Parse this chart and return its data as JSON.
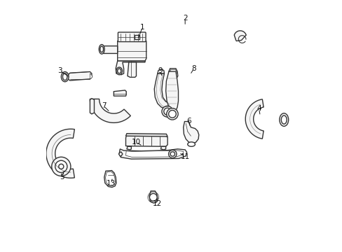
{
  "background_color": "#ffffff",
  "line_color": "#333333",
  "line_width": 1.0,
  "label_color": "#111111",
  "label_fontsize": 7.5,
  "fig_width": 4.89,
  "fig_height": 3.6,
  "dpi": 100,
  "label_positions": {
    "1": [
      0.385,
      0.895,
      0.365,
      0.845
    ],
    "2": [
      0.555,
      0.93,
      0.555,
      0.9
    ],
    "3": [
      0.055,
      0.72,
      0.095,
      0.695
    ],
    "4": [
      0.85,
      0.57,
      0.855,
      0.54
    ],
    "5": [
      0.062,
      0.295,
      0.075,
      0.328
    ],
    "6": [
      0.57,
      0.52,
      0.575,
      0.495
    ],
    "7": [
      0.23,
      0.58,
      0.255,
      0.555
    ],
    "8": [
      0.59,
      0.73,
      0.575,
      0.705
    ],
    "9": [
      0.455,
      0.72,
      0.465,
      0.695
    ],
    "10": [
      0.36,
      0.435,
      0.385,
      0.42
    ],
    "11": [
      0.555,
      0.378,
      0.53,
      0.393
    ],
    "12": [
      0.445,
      0.19,
      0.44,
      0.215
    ],
    "13": [
      0.26,
      0.27,
      0.265,
      0.295
    ]
  }
}
